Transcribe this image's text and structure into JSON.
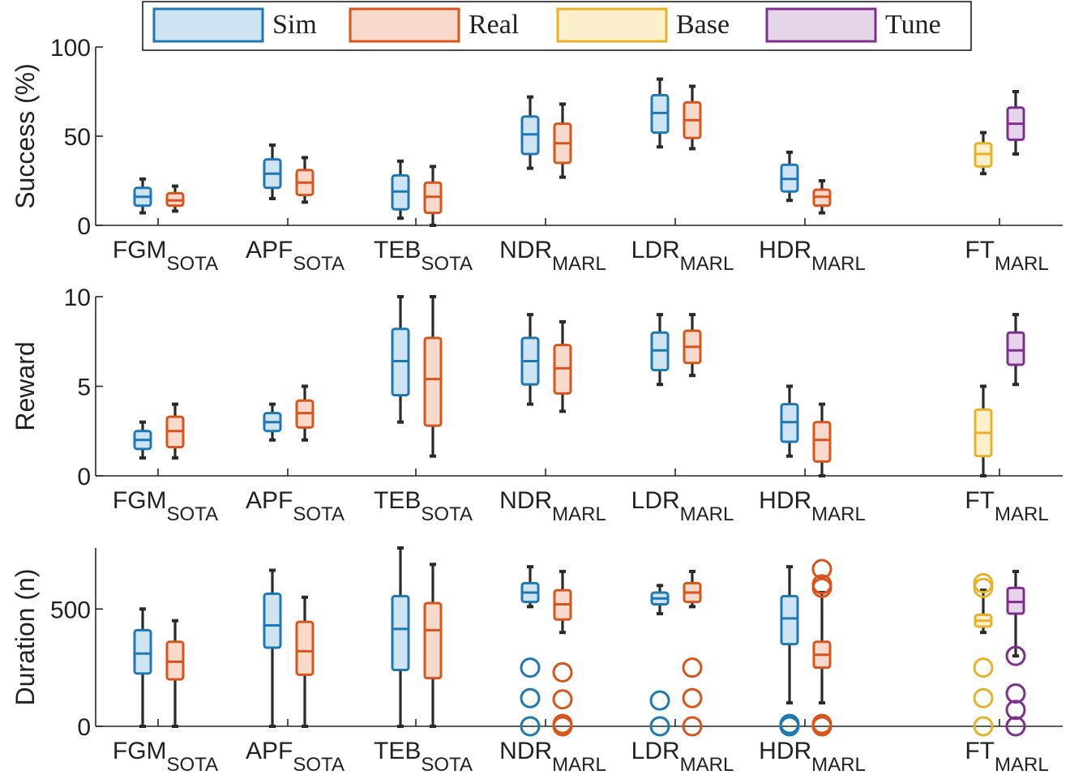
{
  "legend": {
    "entries": [
      {
        "label": "Sim",
        "color": "#1f77b4",
        "fill": "#cfe4f3"
      },
      {
        "label": "Real",
        "color": "#d9541a",
        "fill": "#f8d9cc"
      },
      {
        "label": "Base",
        "color": "#e8b12a",
        "fill": "#fbefcc"
      },
      {
        "label": "Tune",
        "color": "#7e2f8e",
        "fill": "#e6d5ea"
      }
    ]
  },
  "chart_data": [
    {
      "type": "box",
      "ylabel": "Success (%)",
      "ylim": [
        0,
        100
      ],
      "yticks": [
        0,
        50,
        100
      ],
      "categories": [
        {
          "main": "FGM",
          "sub": "SOTA"
        },
        {
          "main": "APF",
          "sub": "SOTA"
        },
        {
          "main": "TEB",
          "sub": "SOTA"
        },
        {
          "main": "NDR",
          "sub": "MARL"
        },
        {
          "main": "LDR",
          "sub": "MARL"
        },
        {
          "main": "HDR",
          "sub": "MARL"
        },
        {
          "main": "FT",
          "sub": "MARL"
        }
      ],
      "boxes": [
        {
          "category": 0,
          "series": "Sim",
          "whisker_low": 7,
          "q1": 11,
          "median": 16,
          "q3": 21,
          "whisker_high": 26
        },
        {
          "category": 0,
          "series": "Real",
          "whisker_low": 8,
          "q1": 11,
          "median": 14,
          "q3": 18,
          "whisker_high": 22
        },
        {
          "category": 1,
          "series": "Sim",
          "whisker_low": 15,
          "q1": 21,
          "median": 29,
          "q3": 37,
          "whisker_high": 45
        },
        {
          "category": 1,
          "series": "Real",
          "whisker_low": 13,
          "q1": 17,
          "median": 24,
          "q3": 31,
          "whisker_high": 38
        },
        {
          "category": 2,
          "series": "Sim",
          "whisker_low": 4,
          "q1": 9,
          "median": 19,
          "q3": 28,
          "whisker_high": 36
        },
        {
          "category": 2,
          "series": "Real",
          "whisker_low": 0,
          "q1": 7,
          "median": 16,
          "q3": 24,
          "whisker_high": 33
        },
        {
          "category": 3,
          "series": "Sim",
          "whisker_low": 32,
          "q1": 40,
          "median": 51,
          "q3": 61,
          "whisker_high": 72
        },
        {
          "category": 3,
          "series": "Real",
          "whisker_low": 27,
          "q1": 35,
          "median": 46,
          "q3": 57,
          "whisker_high": 68
        },
        {
          "category": 4,
          "series": "Sim",
          "whisker_low": 44,
          "q1": 52,
          "median": 63,
          "q3": 73,
          "whisker_high": 82
        },
        {
          "category": 4,
          "series": "Real",
          "whisker_low": 43,
          "q1": 49,
          "median": 59,
          "q3": 69,
          "whisker_high": 78
        },
        {
          "category": 5,
          "series": "Sim",
          "whisker_low": 14,
          "q1": 19,
          "median": 26,
          "q3": 34,
          "whisker_high": 41
        },
        {
          "category": 5,
          "series": "Real",
          "whisker_low": 7,
          "q1": 11,
          "median": 16,
          "q3": 20,
          "whisker_high": 25
        },
        {
          "category": 6,
          "series": "Base",
          "whisker_low": 29,
          "q1": 33,
          "median": 40,
          "q3": 46,
          "whisker_high": 52
        },
        {
          "category": 6,
          "series": "Tune",
          "whisker_low": 40,
          "q1": 48,
          "median": 57,
          "q3": 66,
          "whisker_high": 75
        }
      ],
      "outliers": []
    },
    {
      "type": "box",
      "ylabel": "Reward",
      "ylim": [
        0,
        10
      ],
      "yticks": [
        0,
        5,
        10
      ],
      "categories": [
        {
          "main": "FGM",
          "sub": "SOTA"
        },
        {
          "main": "APF",
          "sub": "SOTA"
        },
        {
          "main": "TEB",
          "sub": "SOTA"
        },
        {
          "main": "NDR",
          "sub": "MARL"
        },
        {
          "main": "LDR",
          "sub": "MARL"
        },
        {
          "main": "HDR",
          "sub": "MARL"
        },
        {
          "main": "FT",
          "sub": "MARL"
        }
      ],
      "boxes": [
        {
          "category": 0,
          "series": "Sim",
          "whisker_low": 1.0,
          "q1": 1.5,
          "median": 2.0,
          "q3": 2.5,
          "whisker_high": 3.0
        },
        {
          "category": 0,
          "series": "Real",
          "whisker_low": 1.0,
          "q1": 1.6,
          "median": 2.5,
          "q3": 3.3,
          "whisker_high": 4.0
        },
        {
          "category": 1,
          "series": "Sim",
          "whisker_low": 2.0,
          "q1": 2.5,
          "median": 3.0,
          "q3": 3.5,
          "whisker_high": 4.0
        },
        {
          "category": 1,
          "series": "Real",
          "whisker_low": 2.0,
          "q1": 2.7,
          "median": 3.5,
          "q3": 4.2,
          "whisker_high": 5.0
        },
        {
          "category": 2,
          "series": "Sim",
          "whisker_low": 3.0,
          "q1": 4.5,
          "median": 6.4,
          "q3": 8.2,
          "whisker_high": 10.0
        },
        {
          "category": 2,
          "series": "Real",
          "whisker_low": 1.1,
          "q1": 2.8,
          "median": 5.4,
          "q3": 7.7,
          "whisker_high": 10.0
        },
        {
          "category": 3,
          "series": "Sim",
          "whisker_low": 4.0,
          "q1": 5.1,
          "median": 6.4,
          "q3": 7.7,
          "whisker_high": 9.0
        },
        {
          "category": 3,
          "series": "Real",
          "whisker_low": 3.6,
          "q1": 4.6,
          "median": 6.0,
          "q3": 7.3,
          "whisker_high": 8.6
        },
        {
          "category": 4,
          "series": "Sim",
          "whisker_low": 5.1,
          "q1": 5.9,
          "median": 7.0,
          "q3": 8.0,
          "whisker_high": 9.0
        },
        {
          "category": 4,
          "series": "Real",
          "whisker_low": 5.6,
          "q1": 6.3,
          "median": 7.2,
          "q3": 8.1,
          "whisker_high": 9.0
        },
        {
          "category": 5,
          "series": "Sim",
          "whisker_low": 1.1,
          "q1": 1.9,
          "median": 3.0,
          "q3": 4.0,
          "whisker_high": 5.0
        },
        {
          "category": 5,
          "series": "Real",
          "whisker_low": 0.0,
          "q1": 0.8,
          "median": 2.0,
          "q3": 3.0,
          "whisker_high": 4.0
        },
        {
          "category": 6,
          "series": "Base",
          "whisker_low": 0.0,
          "q1": 1.1,
          "median": 2.4,
          "q3": 3.7,
          "whisker_high": 5.0
        },
        {
          "category": 6,
          "series": "Tune",
          "whisker_low": 5.1,
          "q1": 6.2,
          "median": 7.0,
          "q3": 8.0,
          "whisker_high": 9.0
        }
      ],
      "outliers": []
    },
    {
      "type": "box",
      "ylabel": "Duration (n)",
      "ylim": [
        0,
        760
      ],
      "yticks": [
        0,
        500
      ],
      "categories": [
        {
          "main": "FGM",
          "sub": "SOTA"
        },
        {
          "main": "APF",
          "sub": "SOTA"
        },
        {
          "main": "TEB",
          "sub": "SOTA"
        },
        {
          "main": "NDR",
          "sub": "MARL"
        },
        {
          "main": "LDR",
          "sub": "MARL"
        },
        {
          "main": "HDR",
          "sub": "MARL"
        },
        {
          "main": "FT",
          "sub": "MARL"
        }
      ],
      "boxes": [
        {
          "category": 0,
          "series": "Sim",
          "whisker_low": 0,
          "q1": 225,
          "median": 310,
          "q3": 410,
          "whisker_high": 500
        },
        {
          "category": 0,
          "series": "Real",
          "whisker_low": 0,
          "q1": 200,
          "median": 275,
          "q3": 360,
          "whisker_high": 450
        },
        {
          "category": 1,
          "series": "Sim",
          "whisker_low": 0,
          "q1": 335,
          "median": 430,
          "q3": 565,
          "whisker_high": 665
        },
        {
          "category": 1,
          "series": "Real",
          "whisker_low": 0,
          "q1": 220,
          "median": 320,
          "q3": 445,
          "whisker_high": 550
        },
        {
          "category": 2,
          "series": "Sim",
          "whisker_low": 0,
          "q1": 240,
          "median": 415,
          "q3": 555,
          "whisker_high": 760
        },
        {
          "category": 2,
          "series": "Real",
          "whisker_low": 0,
          "q1": 205,
          "median": 410,
          "q3": 525,
          "whisker_high": 690
        },
        {
          "category": 3,
          "series": "Sim",
          "whisker_low": 510,
          "q1": 530,
          "median": 570,
          "q3": 610,
          "whisker_high": 680
        },
        {
          "category": 3,
          "series": "Real",
          "whisker_low": 400,
          "q1": 455,
          "median": 520,
          "q3": 580,
          "whisker_high": 660
        },
        {
          "category": 4,
          "series": "Sim",
          "whisker_low": 480,
          "q1": 520,
          "median": 545,
          "q3": 570,
          "whisker_high": 600
        },
        {
          "category": 4,
          "series": "Real",
          "whisker_low": 510,
          "q1": 530,
          "median": 570,
          "q3": 610,
          "whisker_high": 660
        },
        {
          "category": 5,
          "series": "Sim",
          "whisker_low": 100,
          "q1": 350,
          "median": 460,
          "q3": 555,
          "whisker_high": 680
        },
        {
          "category": 5,
          "series": "Real",
          "whisker_low": 100,
          "q1": 250,
          "median": 305,
          "q3": 360,
          "whisker_high": 570
        },
        {
          "category": 6,
          "series": "Base",
          "whisker_low": 400,
          "q1": 425,
          "median": 450,
          "q3": 475,
          "whisker_high": 580
        },
        {
          "category": 6,
          "series": "Tune",
          "whisker_low": 300,
          "q1": 480,
          "median": 530,
          "q3": 590,
          "whisker_high": 660
        }
      ],
      "outliers": [
        {
          "category": 3,
          "series": "Sim",
          "values": [
            250,
            120,
            0
          ]
        },
        {
          "category": 3,
          "series": "Real",
          "values": [
            230,
            115,
            10,
            0
          ]
        },
        {
          "category": 4,
          "series": "Sim",
          "values": [
            110,
            0
          ]
        },
        {
          "category": 4,
          "series": "Real",
          "values": [
            250,
            120,
            0
          ]
        },
        {
          "category": 5,
          "series": "Sim",
          "values": [
            10,
            0
          ]
        },
        {
          "category": 5,
          "series": "Real",
          "values": [
            670,
            605,
            590,
            10,
            0
          ]
        },
        {
          "category": 6,
          "series": "Base",
          "values": [
            610,
            590,
            250,
            120,
            0
          ]
        },
        {
          "category": 6,
          "series": "Tune",
          "values": [
            300,
            140,
            70,
            0
          ]
        }
      ]
    }
  ]
}
